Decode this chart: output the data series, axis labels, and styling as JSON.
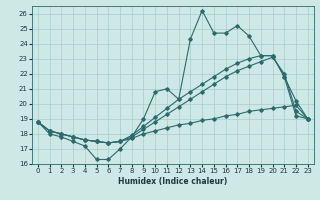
{
  "xlabel": "Humidex (Indice chaleur)",
  "xlim": [
    -0.5,
    23.5
  ],
  "ylim": [
    16,
    26.5
  ],
  "yticks": [
    16,
    17,
    18,
    19,
    20,
    21,
    22,
    23,
    24,
    25,
    26
  ],
  "xticks": [
    0,
    1,
    2,
    3,
    4,
    5,
    6,
    7,
    8,
    9,
    10,
    11,
    12,
    13,
    14,
    15,
    16,
    17,
    18,
    19,
    20,
    21,
    22,
    23
  ],
  "bg_color": "#cde8e5",
  "grid_color": "#a8ceca",
  "line_color": "#2a6b6b",
  "lines": [
    {
      "x": [
        0,
        1,
        2,
        3,
        4,
        5,
        6,
        7,
        8,
        9,
        10,
        11,
        12,
        13,
        14,
        15,
        16,
        17,
        18,
        19,
        20,
        21,
        22,
        23
      ],
      "y": [
        18.8,
        18.0,
        17.8,
        17.5,
        17.2,
        16.3,
        16.3,
        17.0,
        17.8,
        19.0,
        20.8,
        21.0,
        20.3,
        24.3,
        26.2,
        24.7,
        24.7,
        25.2,
        24.5,
        23.2,
        23.2,
        21.8,
        20.2,
        19.0
      ]
    },
    {
      "x": [
        0,
        1,
        2,
        3,
        4,
        5,
        6,
        7,
        8,
        9,
        10,
        11,
        12,
        13,
        14,
        15,
        16,
        17,
        18,
        19,
        20,
        21,
        22,
        23
      ],
      "y": [
        18.8,
        18.2,
        18.0,
        17.8,
        17.6,
        17.5,
        17.4,
        17.5,
        17.7,
        18.0,
        18.2,
        18.4,
        18.6,
        18.7,
        18.9,
        19.0,
        19.2,
        19.3,
        19.5,
        19.6,
        19.7,
        19.8,
        19.9,
        19.0
      ]
    },
    {
      "x": [
        0,
        1,
        2,
        3,
        4,
        5,
        6,
        7,
        8,
        9,
        10,
        11,
        12,
        13,
        14,
        15,
        16,
        17,
        18,
        19,
        20,
        21,
        22,
        23
      ],
      "y": [
        18.8,
        18.2,
        18.0,
        17.8,
        17.6,
        17.5,
        17.4,
        17.5,
        17.8,
        18.3,
        18.8,
        19.3,
        19.8,
        20.3,
        20.8,
        21.3,
        21.8,
        22.2,
        22.5,
        22.8,
        23.1,
        22.0,
        19.5,
        19.0
      ]
    },
    {
      "x": [
        0,
        1,
        2,
        3,
        4,
        5,
        6,
        7,
        8,
        9,
        10,
        11,
        12,
        13,
        14,
        15,
        16,
        17,
        18,
        19,
        20,
        21,
        22,
        23
      ],
      "y": [
        18.8,
        18.2,
        18.0,
        17.8,
        17.6,
        17.5,
        17.4,
        17.5,
        17.9,
        18.5,
        19.1,
        19.7,
        20.3,
        20.8,
        21.3,
        21.8,
        22.3,
        22.7,
        23.0,
        23.2,
        23.2,
        21.8,
        19.2,
        19.0
      ]
    }
  ]
}
